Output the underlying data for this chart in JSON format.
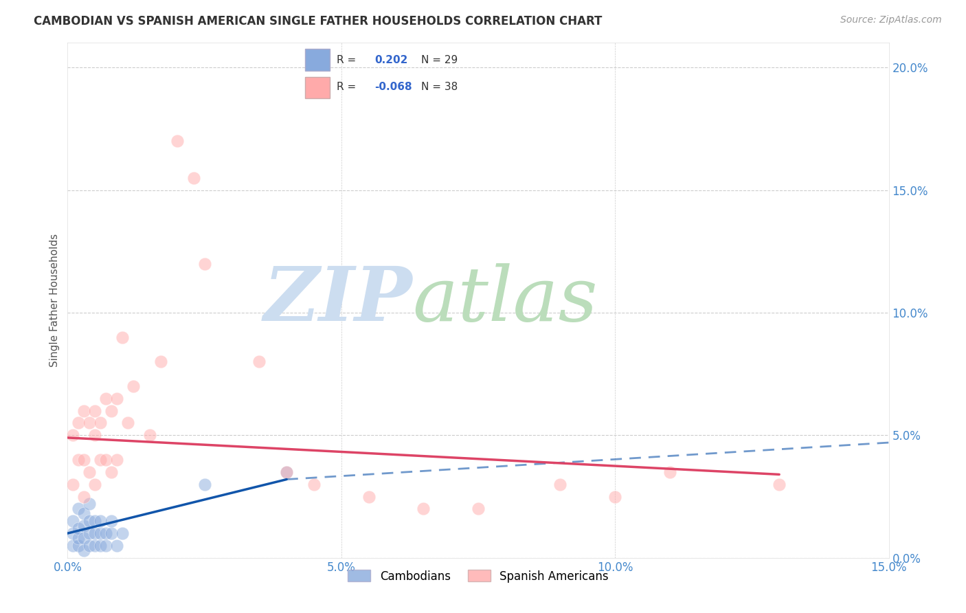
{
  "title": "CAMBODIAN VS SPANISH AMERICAN SINGLE FATHER HOUSEHOLDS CORRELATION CHART",
  "source": "Source: ZipAtlas.com",
  "ylabel": "Single Father Households",
  "xlim": [
    0.0,
    0.15
  ],
  "ylim": [
    0.0,
    0.21
  ],
  "xtick_vals": [
    0.0,
    0.05,
    0.1,
    0.15
  ],
  "ytick_vals": [
    0.0,
    0.05,
    0.1,
    0.15,
    0.2
  ],
  "tick_color": "#4488cc",
  "cambodian_color": "#88aadd",
  "spanish_color": "#ffaaaa",
  "trend_cambodian_color": "#1155aa",
  "trend_spanish_color": "#dd4466",
  "watermark_zip_color": "#ccddf0",
  "watermark_atlas_color": "#bbddbb",
  "legend_r_color": "#3366cc",
  "cambodian_x": [
    0.001,
    0.001,
    0.001,
    0.002,
    0.002,
    0.002,
    0.002,
    0.003,
    0.003,
    0.003,
    0.003,
    0.004,
    0.004,
    0.004,
    0.004,
    0.005,
    0.005,
    0.005,
    0.006,
    0.006,
    0.006,
    0.007,
    0.007,
    0.008,
    0.008,
    0.009,
    0.01,
    0.025,
    0.04
  ],
  "cambodian_y": [
    0.005,
    0.01,
    0.015,
    0.005,
    0.008,
    0.012,
    0.02,
    0.003,
    0.008,
    0.013,
    0.018,
    0.005,
    0.01,
    0.015,
    0.022,
    0.005,
    0.01,
    0.015,
    0.005,
    0.01,
    0.015,
    0.005,
    0.01,
    0.01,
    0.015,
    0.005,
    0.01,
    0.03,
    0.035
  ],
  "spanish_x": [
    0.001,
    0.001,
    0.002,
    0.002,
    0.003,
    0.003,
    0.003,
    0.004,
    0.004,
    0.005,
    0.005,
    0.005,
    0.006,
    0.006,
    0.007,
    0.007,
    0.008,
    0.008,
    0.009,
    0.009,
    0.01,
    0.011,
    0.012,
    0.015,
    0.017,
    0.02,
    0.023,
    0.025,
    0.035,
    0.04,
    0.045,
    0.055,
    0.065,
    0.075,
    0.09,
    0.1,
    0.11,
    0.13
  ],
  "spanish_y": [
    0.03,
    0.05,
    0.04,
    0.055,
    0.025,
    0.04,
    0.06,
    0.035,
    0.055,
    0.03,
    0.05,
    0.06,
    0.04,
    0.055,
    0.04,
    0.065,
    0.035,
    0.06,
    0.04,
    0.065,
    0.09,
    0.055,
    0.07,
    0.05,
    0.08,
    0.17,
    0.155,
    0.12,
    0.08,
    0.035,
    0.03,
    0.025,
    0.02,
    0.02,
    0.03,
    0.025,
    0.035,
    0.03
  ],
  "trend_blue_x0": 0.0,
  "trend_blue_y0": 0.01,
  "trend_blue_x1": 0.04,
  "trend_blue_y1": 0.032,
  "trend_blue_dash_x0": 0.04,
  "trend_blue_dash_y0": 0.032,
  "trend_blue_dash_x1": 0.15,
  "trend_blue_dash_y1": 0.047,
  "trend_pink_x0": 0.0,
  "trend_pink_y0": 0.049,
  "trend_pink_x1": 0.13,
  "trend_pink_y1": 0.034
}
